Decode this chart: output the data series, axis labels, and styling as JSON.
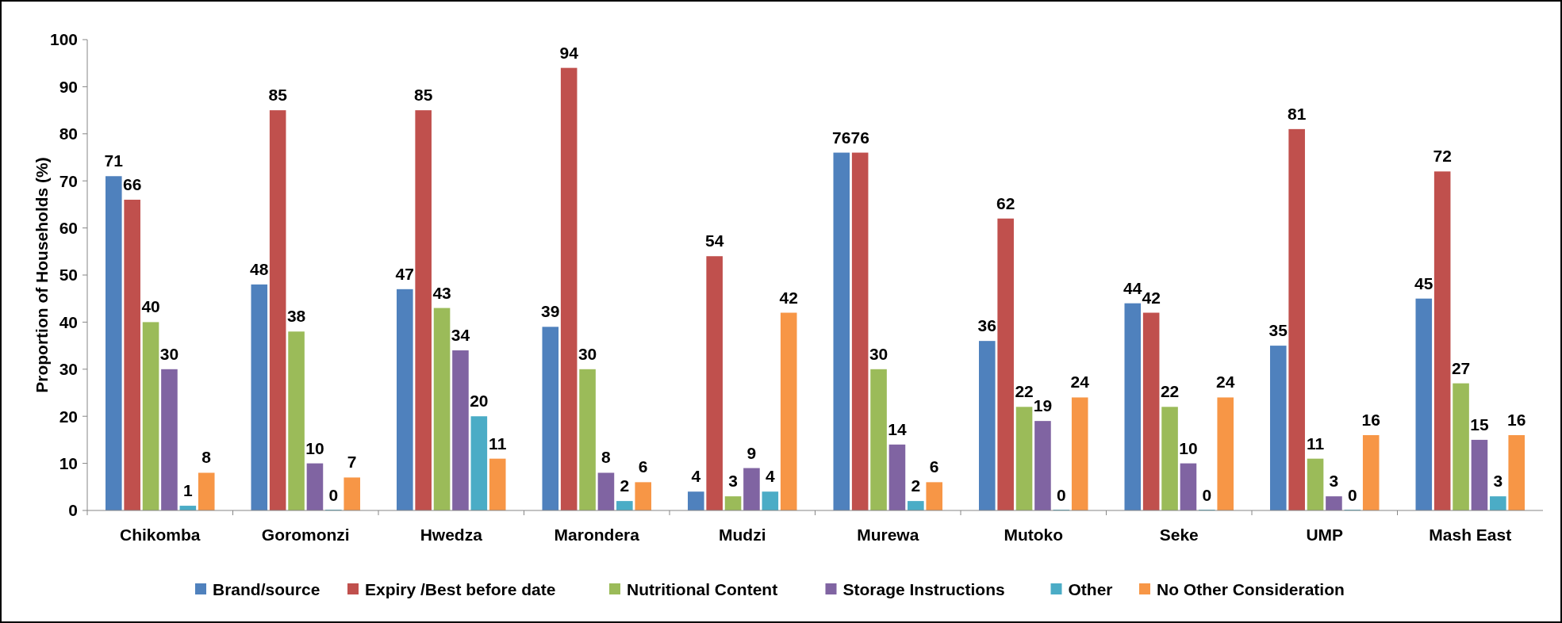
{
  "chart_data": {
    "type": "bar",
    "ylabel": "Proportion of Households (%)",
    "categories": [
      "Chikomba",
      "Goromonzi",
      "Hwedza",
      "Marondera",
      "Mudzi",
      "Murewa",
      "Mutoko",
      "Seke",
      "UMP",
      "Mash East"
    ],
    "series": [
      {
        "name": "Brand/source",
        "color": "#4f81bd",
        "values": [
          71,
          48,
          47,
          39,
          4,
          76,
          36,
          44,
          35,
          45
        ]
      },
      {
        "name": "Expiry /Best before date",
        "color": "#c0504d",
        "values": [
          66,
          85,
          85,
          94,
          54,
          76,
          62,
          42,
          81,
          72
        ]
      },
      {
        "name": "Nutritional Content",
        "color": "#9bbb59",
        "values": [
          40,
          38,
          43,
          30,
          3,
          30,
          22,
          22,
          11,
          27
        ]
      },
      {
        "name": "Storage Instructions",
        "color": "#8064a2",
        "values": [
          30,
          10,
          34,
          8,
          9,
          14,
          19,
          10,
          3,
          15
        ]
      },
      {
        "name": "Other",
        "color": "#4bacc6",
        "values": [
          1,
          0,
          20,
          2,
          4,
          2,
          0,
          0,
          0,
          3
        ]
      },
      {
        "name": "No Other Consideration",
        "color": "#f79646",
        "values": [
          8,
          7,
          11,
          6,
          42,
          6,
          24,
          24,
          16,
          16
        ]
      }
    ],
    "ylim": [
      0,
      100
    ],
    "yticks": [
      0,
      10,
      20,
      30,
      40,
      50,
      60,
      70,
      80,
      90,
      100
    ],
    "data_labels": true,
    "legend": "bottom",
    "grid": false
  }
}
